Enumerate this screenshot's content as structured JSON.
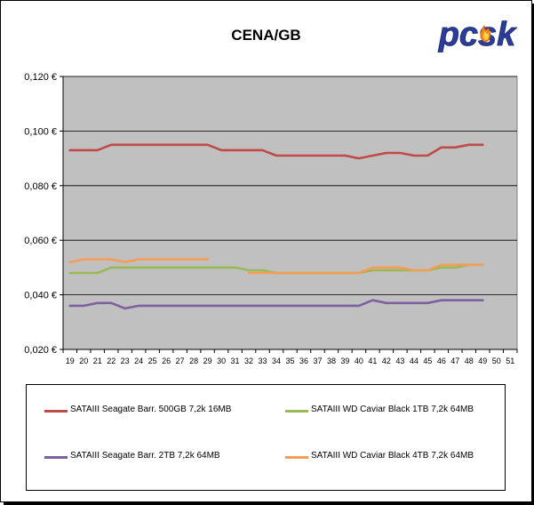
{
  "logo": {
    "text": "pcsk",
    "icon": "flame-icon"
  },
  "chart_data": {
    "type": "line",
    "title": "CENA/GB",
    "xlabel": "",
    "ylabel": "",
    "x": [
      19,
      20,
      21,
      22,
      23,
      24,
      25,
      26,
      27,
      28,
      29,
      30,
      31,
      32,
      33,
      34,
      35,
      36,
      37,
      38,
      39,
      40,
      41,
      42,
      43,
      44,
      45,
      46,
      47,
      48,
      49,
      50,
      51
    ],
    "ylim": [
      0.02,
      0.12
    ],
    "yticks": [
      0.02,
      0.04,
      0.06,
      0.08,
      0.1,
      0.12
    ],
    "ytick_labels": [
      "0,020 €",
      "0,040 €",
      "0,060 €",
      "0,080 €",
      "0,100 €",
      "0,120 €"
    ],
    "grid": true,
    "legend_position": "bottom",
    "plot_background": "#c0c0c0",
    "series": [
      {
        "name": "SATAIII Seagate Barr. 500GB 7,2k 16MB",
        "color": "#be4b48",
        "values": [
          0.093,
          0.093,
          0.093,
          0.095,
          0.095,
          0.095,
          0.095,
          0.095,
          0.095,
          0.095,
          0.095,
          0.093,
          0.093,
          0.093,
          0.093,
          0.091,
          0.091,
          0.091,
          0.091,
          0.091,
          0.091,
          0.09,
          0.091,
          0.092,
          0.092,
          0.091,
          0.091,
          0.094,
          0.094,
          0.095,
          0.095,
          null,
          null
        ]
      },
      {
        "name": "SATAIII WD Caviar Black 1TB 7,2k 64MB",
        "color": "#98b954",
        "values": [
          0.048,
          0.048,
          0.048,
          0.05,
          0.05,
          0.05,
          0.05,
          0.05,
          0.05,
          0.05,
          0.05,
          0.05,
          0.05,
          0.049,
          0.049,
          0.048,
          0.048,
          0.048,
          0.048,
          0.048,
          0.048,
          0.048,
          0.049,
          0.049,
          0.049,
          0.049,
          0.049,
          0.05,
          0.05,
          0.051,
          0.051,
          null,
          null
        ]
      },
      {
        "name": "SATAIII Seagate Barr. 2TB 7,2k 64MB",
        "color": "#7d60a0",
        "values": [
          0.036,
          0.036,
          0.037,
          0.037,
          0.035,
          0.036,
          0.036,
          0.036,
          0.036,
          0.036,
          0.036,
          0.036,
          0.036,
          0.036,
          0.036,
          0.036,
          0.036,
          0.036,
          0.036,
          0.036,
          0.036,
          0.036,
          0.038,
          0.037,
          0.037,
          0.037,
          0.037,
          0.038,
          0.038,
          0.038,
          0.038,
          null,
          null
        ]
      },
      {
        "name": "SATAIII WD Caviar Black 4TB 7,2k 64MB",
        "color": "#f59d56",
        "values": [
          0.052,
          0.053,
          0.053,
          0.053,
          0.052,
          0.053,
          0.053,
          0.053,
          0.053,
          0.053,
          0.053,
          null,
          null,
          0.048,
          0.048,
          0.048,
          0.048,
          0.048,
          0.048,
          0.048,
          0.048,
          0.048,
          0.05,
          0.05,
          0.05,
          0.049,
          0.049,
          0.051,
          0.051,
          0.051,
          0.051,
          null,
          null
        ]
      }
    ]
  }
}
